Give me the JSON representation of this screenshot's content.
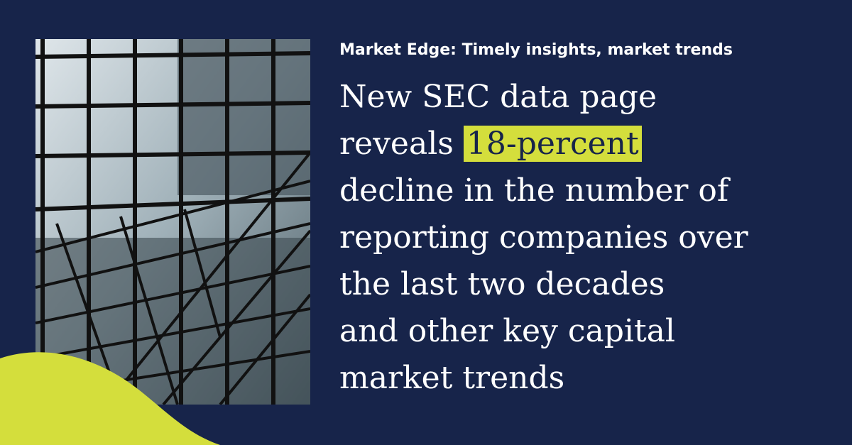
{
  "header": {
    "kicker": "Market Edge: Timely insights, market trends"
  },
  "headline": {
    "lines": [
      "New SEC data page",
      "reveals",
      "decline in the number of",
      "reporting companies over",
      "the last two decades",
      "and other key capital",
      "market trends"
    ],
    "highlight": "18-percent"
  }
}
